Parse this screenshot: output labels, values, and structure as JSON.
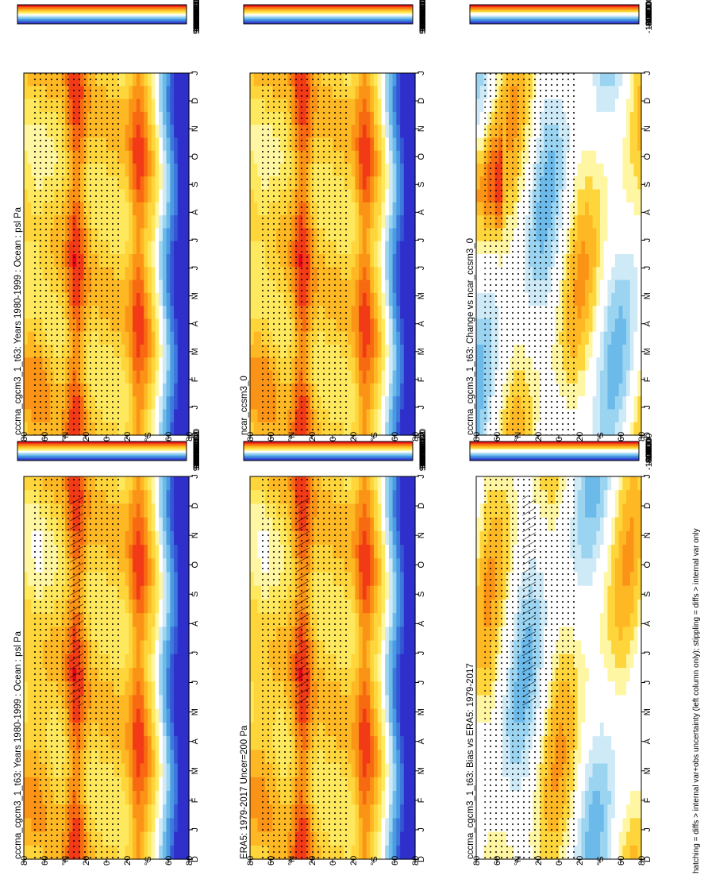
{
  "figure": {
    "footnote": "hatching = diffs > internal var+obs uncertainty (left column only); stippling = diffs > internal var only"
  },
  "time_ticks": [
    "D",
    "J",
    "F",
    "M",
    "A",
    "M",
    "J",
    "J",
    "A",
    "S",
    "O",
    "N",
    "D",
    "J"
  ],
  "lat_ticks": [
    "80",
    "60",
    "°N",
    "20",
    "0",
    "20",
    "°S",
    "60",
    "80"
  ],
  "scales": {
    "abs": {
      "labels": [
        "102400",
        "102000",
        "101600",
        "101200",
        "100800",
        "100400",
        "100000",
        "99600",
        "99200",
        "98800",
        "98400"
      ],
      "colors": [
        "#e8001c",
        "#f23a17",
        "#f86a12",
        "#fb9416",
        "#fdb824",
        "#fed53a",
        "#fee95e",
        "#fff6a3",
        "#ffffff",
        "#cfeaf7",
        "#9bd4f1",
        "#6cbaea",
        "#4a9be3",
        "#3c79dc",
        "#3356d4",
        "#2f2fcb"
      ]
    },
    "diff": {
      "labels": [
        "1000",
        "800",
        "600",
        "400",
        "200",
        "0",
        "-200",
        "-400",
        "-600",
        "-800",
        "-1000"
      ],
      "colors": [
        "#e8001c",
        "#f23a17",
        "#f86a12",
        "#fb9416",
        "#fdb824",
        "#fed53a",
        "#fff6a3",
        "#ffffff",
        "#ffffff",
        "#cfeaf7",
        "#9bd4f1",
        "#6cbaea",
        "#4a9be3",
        "#3c79dc",
        "#3356d4",
        "#2f2fcb"
      ]
    }
  },
  "panels": [
    {
      "id": "top-left",
      "title": "cccma_cgcm3_1_t63: Years 1980-1999 : Ocean : psl Pa",
      "scale": "abs",
      "hatching": true
    },
    {
      "id": "top-right",
      "title": "cccma_cgcm3_1_t63: Years 1980-1999 : Ocean : psl Pa",
      "scale": "abs",
      "hatching": false
    },
    {
      "id": "mid-left",
      "title": "ERA5: 1979-2017 Uncer=200 Pa",
      "scale": "abs",
      "hatching": true
    },
    {
      "id": "mid-right",
      "title": "ncar_ccsm3_0",
      "scale": "abs",
      "hatching": false
    },
    {
      "id": "bot-left",
      "title": "cccma_cgcm3_1_t63: Bias vs ERA5: 1979-2017",
      "scale": "diff",
      "hatching": true
    },
    {
      "id": "bot-right",
      "title": "cccma_cgcm3_1_t63: Change vs ncar_ccsm3_0",
      "scale": "diff",
      "hatching": false
    }
  ],
  "chart_data": [
    {
      "type": "heatmap",
      "title": "cccma_cgcm3_1_t63: Years 1980-1999 : Ocean : psl Pa",
      "x": "month D..J",
      "y": "latitude 80N..80S",
      "bands": [
        {
          "lat": "80N",
          "value": 101400
        },
        {
          "lat": "60N",
          "value": 100800
        },
        {
          "lat": "40N",
          "value": 101800
        },
        {
          "lat": "20N",
          "value": 102000
        },
        {
          "lat": "0",
          "value": 101200
        },
        {
          "lat": "20S",
          "value": 101600
        },
        {
          "lat": "35S",
          "value": 102000
        },
        {
          "lat": "60S",
          "value": 99200
        },
        {
          "lat": "70S",
          "value": 98400
        }
      ]
    },
    {
      "type": "heatmap",
      "title": "cccma_cgcm3_1_t63: Years 1980-1999 : Ocean : psl Pa",
      "x": "month D..J",
      "y": "latitude 80N..80S"
    },
    {
      "type": "heatmap",
      "title": "ERA5: 1979-2017 Uncer=200 Pa",
      "x": "month D..J",
      "y": "latitude 80N..80S"
    },
    {
      "type": "heatmap",
      "title": "ncar_ccsm3_0",
      "x": "month D..J",
      "y": "latitude 80N..80S"
    },
    {
      "type": "heatmap",
      "title": "cccma_cgcm3_1_t63: Bias vs ERA5: 1979-2017",
      "x": "month D..J",
      "y": "latitude 80N..80S"
    },
    {
      "type": "heatmap",
      "title": "cccma_cgcm3_1_t63: Change vs ncar_ccsm3_0",
      "x": "month D..J",
      "y": "latitude 80N..80S"
    }
  ]
}
